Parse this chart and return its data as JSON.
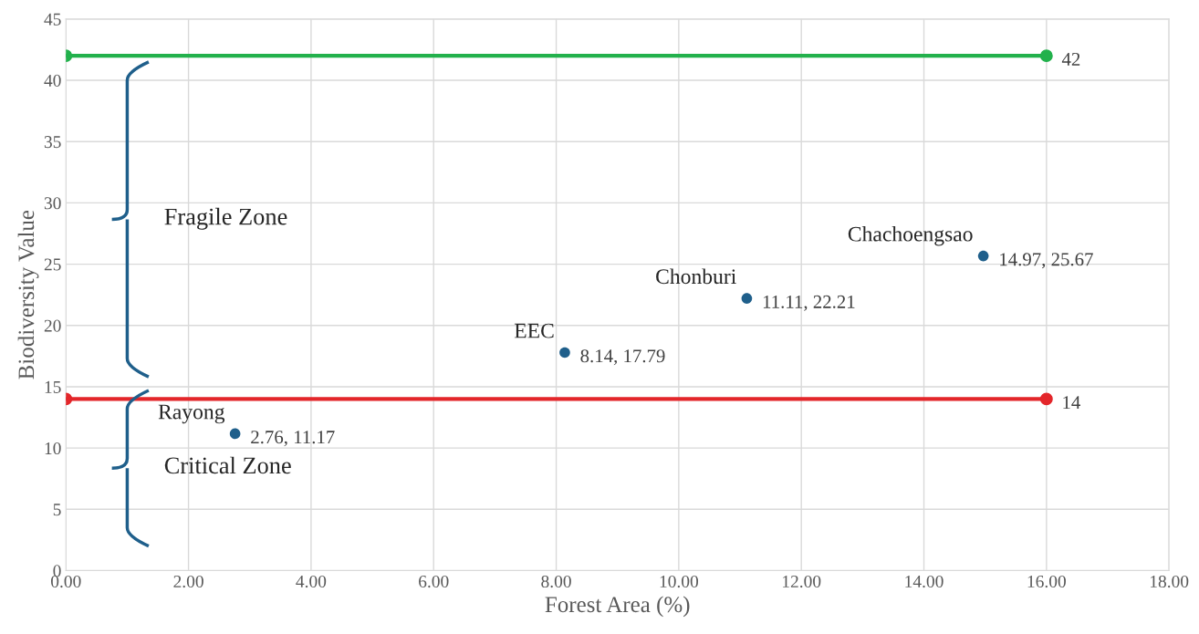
{
  "chart_data": {
    "type": "scatter",
    "xlabel": "Forest Area (%)",
    "ylabel": "Biodiversity Value",
    "xlim": [
      0,
      18
    ],
    "xticks": [
      {
        "value": 0,
        "label": "0.00"
      },
      {
        "value": 2,
        "label": "2.00"
      },
      {
        "value": 4,
        "label": "4.00"
      },
      {
        "value": 6,
        "label": "6.00"
      },
      {
        "value": 8,
        "label": "8.00"
      },
      {
        "value": 10,
        "label": "10.00"
      },
      {
        "value": 12,
        "label": "12.00"
      },
      {
        "value": 14,
        "label": "14.00"
      },
      {
        "value": 16,
        "label": "16.00"
      },
      {
        "value": 18,
        "label": "18.00"
      }
    ],
    "ylim": [
      0,
      45
    ],
    "yticks": [
      0,
      5,
      10,
      15,
      20,
      25,
      30,
      35,
      40,
      45
    ],
    "grid": true,
    "marker": "circle",
    "series": [
      {
        "color": "#1f5f8b",
        "x": [
          2.76,
          8.14,
          11.11,
          14.97
        ],
        "values": [
          11.17,
          17.79,
          22.21,
          25.67
        ],
        "value_labels": [
          "2.76, 11.17",
          "8.14, 17.79",
          "11.11, 22.21",
          "14.97, 25.67"
        ]
      },
      {
        "type": "line",
        "color": "#22b14c",
        "x": [
          0,
          16
        ],
        "values": [
          42,
          42
        ],
        "value_labels": [
          null,
          "42"
        ]
      },
      {
        "type": "line",
        "color": "#e3262a",
        "x": [
          0,
          16
        ],
        "values": [
          14,
          14
        ],
        "value_labels": [
          null,
          "14"
        ]
      }
    ],
    "annotations": [
      {
        "text": "Rayong",
        "x": 2.76,
        "y": 11.17
      },
      {
        "text": "EEC",
        "x": 8.14,
        "y": 17.79
      },
      {
        "text": "Chonburi",
        "x": 11.11,
        "y": 22.21
      },
      {
        "text": "Chachoengsao",
        "x": 14.97,
        "y": 25.67
      },
      "Fragile Zone",
      "Critical Zone"
    ]
  }
}
